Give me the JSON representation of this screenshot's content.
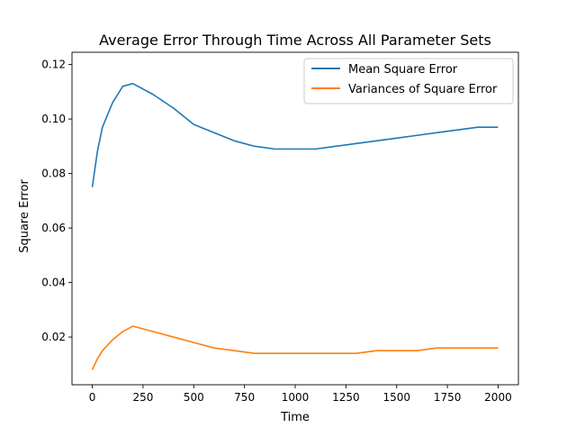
{
  "chart_data": {
    "type": "line",
    "title": "Average Error Through Time Across All Parameter Sets",
    "xlabel": "Time",
    "ylabel": "Square Error",
    "xlim": [
      -100,
      2100
    ],
    "ylim": [
      0.0025,
      0.1245
    ],
    "xticks": [
      0,
      250,
      500,
      750,
      1000,
      1250,
      1500,
      1750,
      2000
    ],
    "xtick_labels": [
      "0",
      "250",
      "500",
      "750",
      "1000",
      "1250",
      "1500",
      "1750",
      "2000"
    ],
    "yticks": [
      0.02,
      0.04,
      0.06,
      0.08,
      0.1,
      0.12
    ],
    "ytick_labels": [
      "0.02",
      "0.04",
      "0.06",
      "0.08",
      "0.10",
      "0.12"
    ],
    "grid": false,
    "legend_position": "upper-right",
    "series": [
      {
        "name": "Mean Square Error",
        "color": "#1f77b4",
        "x": [
          0,
          25,
          50,
          100,
          150,
          200,
          250,
          300,
          400,
          500,
          600,
          700,
          800,
          900,
          1000,
          1100,
          1200,
          1300,
          1400,
          1500,
          1600,
          1700,
          1800,
          1900,
          2000
        ],
        "y": [
          0.075,
          0.088,
          0.097,
          0.106,
          0.112,
          0.113,
          0.111,
          0.109,
          0.104,
          0.098,
          0.095,
          0.092,
          0.09,
          0.089,
          0.089,
          0.089,
          0.09,
          0.091,
          0.092,
          0.093,
          0.094,
          0.095,
          0.096,
          0.097,
          0.097
        ]
      },
      {
        "name": "Variances of Square Error",
        "color": "#ff7f0e",
        "x": [
          0,
          25,
          50,
          100,
          150,
          200,
          250,
          300,
          400,
          500,
          600,
          700,
          800,
          900,
          1000,
          1100,
          1200,
          1300,
          1400,
          1500,
          1600,
          1700,
          1800,
          1900,
          2000
        ],
        "y": [
          0.008,
          0.012,
          0.015,
          0.019,
          0.022,
          0.024,
          0.023,
          0.022,
          0.02,
          0.018,
          0.016,
          0.015,
          0.014,
          0.014,
          0.014,
          0.014,
          0.014,
          0.014,
          0.015,
          0.015,
          0.015,
          0.016,
          0.016,
          0.016,
          0.016
        ]
      }
    ]
  }
}
